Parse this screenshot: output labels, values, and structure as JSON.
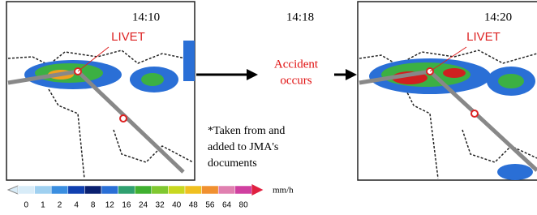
{
  "panels": [
    {
      "time": "14:10",
      "label": "LIVET"
    },
    {
      "time": "14:20",
      "label": "LIVET"
    }
  ],
  "middle": {
    "time": "14:18",
    "event_line1": "Accident",
    "event_line2": "occurs"
  },
  "note": [
    "*Taken from and",
    "added to JMA's",
    "documents"
  ],
  "scale": {
    "ticks": [
      0,
      1,
      2,
      4,
      8,
      12,
      16,
      24,
      32,
      40,
      48,
      56,
      64,
      80
    ],
    "unit": "mm/h"
  }
}
